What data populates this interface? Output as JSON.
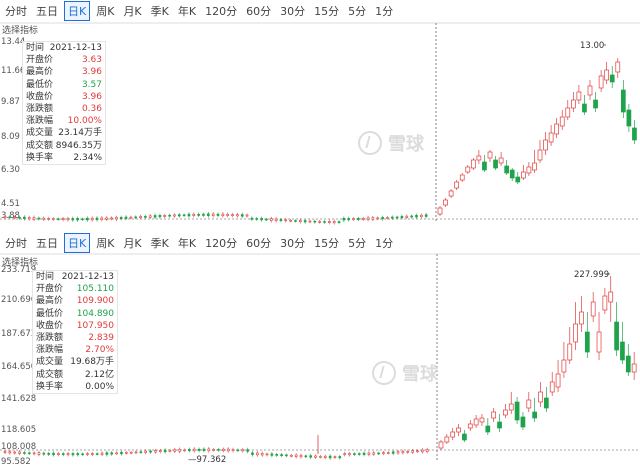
{
  "colors": {
    "up": "#e03a3a",
    "down": "#1ea34a",
    "accent": "#1e6fd9",
    "axis": "#555555"
  },
  "period_tabs": [
    "分时",
    "五日",
    "日K",
    "周K",
    "月K",
    "季K",
    "年K",
    "120分",
    "60分",
    "30分",
    "15分",
    "5分",
    "1分"
  ],
  "active_tab": "日K",
  "selector_label": "选择指标",
  "watermark": "雪球",
  "panels": [
    {
      "id": "top",
      "y_ticks": [
        "13.44",
        "11.66",
        "9.87",
        "8.09",
        "6.30",
        "4.51",
        "3.88"
      ],
      "max_label": "13.00",
      "info": {
        "rows": [
          {
            "label": "时间",
            "value": "2021-12-13",
            "color": "blk"
          },
          {
            "label": "开盘价",
            "value": "3.63",
            "color": "red"
          },
          {
            "label": "最高价",
            "value": "3.96",
            "color": "red"
          },
          {
            "label": "最低价",
            "value": "3.57",
            "color": "green"
          },
          {
            "label": "收盘价",
            "value": "3.96",
            "color": "red"
          },
          {
            "label": "涨跌额",
            "value": "0.36",
            "color": "red"
          },
          {
            "label": "涨跌幅",
            "value": "10.00%",
            "color": "red"
          },
          {
            "label": "成交量",
            "value": "23.14万手",
            "color": "blk"
          },
          {
            "label": "成交额",
            "value": "8946.35万",
            "color": "blk"
          },
          {
            "label": "换手率",
            "value": "2.34%",
            "color": "blk"
          }
        ]
      }
    },
    {
      "id": "bottom",
      "y_ticks": [
        "233.719",
        "210.696",
        "187.673",
        "164.650",
        "141.628",
        "118.605",
        "108.008",
        "95.582"
      ],
      "max_label": "227.999",
      "min_label": "97.362",
      "info": {
        "rows": [
          {
            "label": "时间",
            "value": "2021-12-13",
            "color": "blk"
          },
          {
            "label": "开盘价",
            "value": "105.110",
            "color": "green"
          },
          {
            "label": "最高价",
            "value": "109.900",
            "color": "red"
          },
          {
            "label": "最低价",
            "value": "104.890",
            "color": "green"
          },
          {
            "label": "收盘价",
            "value": "107.950",
            "color": "red"
          },
          {
            "label": "涨跌额",
            "value": "2.839",
            "color": "red"
          },
          {
            "label": "涨跌幅",
            "value": "2.70%",
            "color": "red"
          },
          {
            "label": "成交量",
            "value": "19.68万手",
            "color": "blk"
          },
          {
            "label": "成交额",
            "value": "2.12亿",
            "color": "blk"
          },
          {
            "label": "换手率",
            "value": "0.00%",
            "color": "blk"
          }
        ]
      }
    }
  ]
}
